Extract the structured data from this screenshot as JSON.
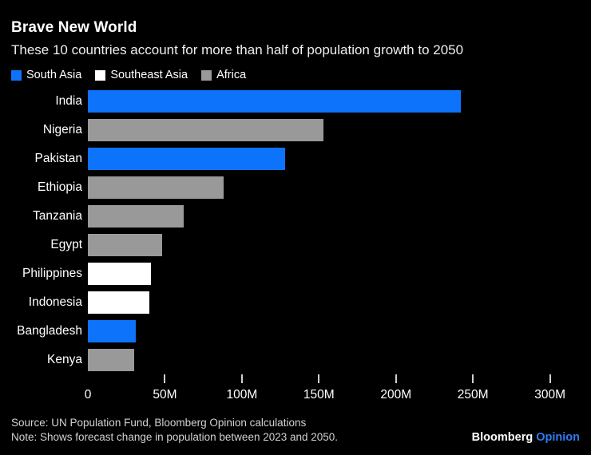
{
  "header": {
    "title": "Brave New World",
    "subtitle": "These 10 countries account for more than half of population growth to 2050"
  },
  "legend": {
    "items": [
      {
        "label": "South Asia",
        "color": "#0d73fb"
      },
      {
        "label": "Southeast Asia",
        "color": "#ffffff"
      },
      {
        "label": "Africa",
        "color": "#999999"
      }
    ]
  },
  "chart_data": {
    "type": "bar",
    "orientation": "horizontal",
    "title": "Brave New World",
    "subtitle": "These 10 countries account for more than half of population growth to 2050",
    "unit": "millions of people (forecast population change 2023-2050)",
    "categories": [
      "India",
      "Nigeria",
      "Pakistan",
      "Ethiopia",
      "Tanzania",
      "Egypt",
      "Philippines",
      "Indonesia",
      "Bangladesh",
      "Kenya"
    ],
    "values": [
      242,
      153,
      128,
      88,
      62,
      48,
      41,
      40,
      31,
      30
    ],
    "groups": [
      "South Asia",
      "Africa",
      "South Asia",
      "Africa",
      "Africa",
      "Africa",
      "Southeast Asia",
      "Southeast Asia",
      "South Asia",
      "Africa"
    ],
    "group_colors": {
      "South Asia": "#0d73fb",
      "Southeast Asia": "#ffffff",
      "Africa": "#999999"
    },
    "xlim": [
      0,
      300
    ],
    "x_tick_values": [
      0,
      50,
      100,
      150,
      200,
      250,
      300
    ],
    "x_tick_labels": [
      "0",
      "50M",
      "100M",
      "150M",
      "200M",
      "250M",
      "300M"
    ],
    "ticks_with_marks": [
      50,
      100,
      150,
      200,
      250,
      300
    ],
    "legend_position": "top",
    "grid": false,
    "background": "#000000"
  },
  "footer": {
    "source": "Source: UN Population Fund, Bloomberg Opinion calculations",
    "note": "Note: Shows forecast change in population between 2023 and 2050.",
    "brand_bloomberg": "Bloomberg",
    "brand_opinion": "Opinion"
  },
  "colors": {
    "background": "#000000",
    "accent_blue": "#0d73fb",
    "bar_gray": "#999999",
    "bar_white": "#ffffff",
    "text_primary": "#ffffff",
    "text_secondary": "#d2d2d2",
    "logo_opinion_blue": "#2e7cf6"
  }
}
